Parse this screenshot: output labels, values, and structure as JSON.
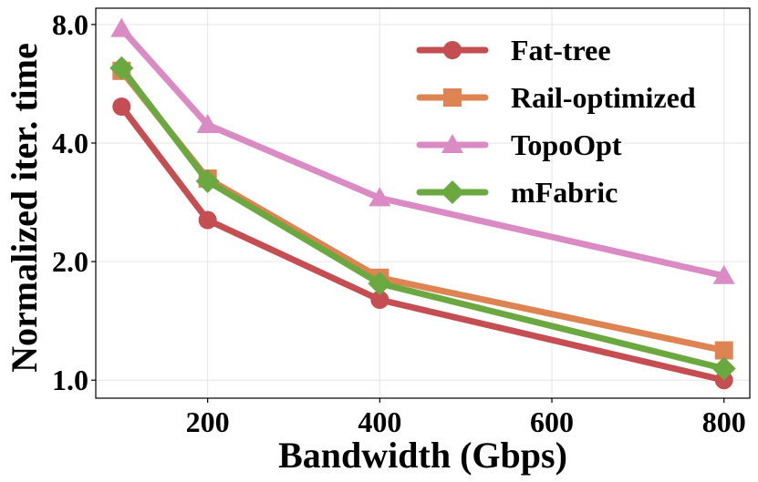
{
  "chart_data": {
    "type": "line",
    "title": "",
    "xlabel": "Bandwidth (Gbps)",
    "ylabel": "Normalized iter. time",
    "xlim": [
      70,
      830
    ],
    "ylim": [
      0.9,
      8.8
    ],
    "yscale": "log2",
    "grid": true,
    "legend_position": "top-right",
    "x_ticks": [
      200,
      400,
      600,
      800
    ],
    "x_tick_labels": [
      "200",
      "400",
      "600",
      "800"
    ],
    "y_ticks": [
      1.0,
      2.0,
      4.0,
      8.0
    ],
    "y_tick_labels": [
      "1.0",
      "2.0",
      "4.0",
      "8.0"
    ],
    "x": [
      100,
      200,
      400,
      800
    ],
    "series": [
      {
        "name": "Fat-tree",
        "color": "#c44e52",
        "marker": "circle",
        "values": [
          4.95,
          2.55,
          1.6,
          1.0
        ]
      },
      {
        "name": "Rail-optimized",
        "color": "#dd8452",
        "marker": "square",
        "values": [
          6.1,
          3.25,
          1.82,
          1.19
        ]
      },
      {
        "name": "TopoOpt",
        "color": "#da8bc3",
        "marker": "triangle",
        "values": [
          7.8,
          4.45,
          2.9,
          1.84
        ]
      },
      {
        "name": "mFabric",
        "color": "#6ca840",
        "marker": "diamond",
        "values": [
          6.2,
          3.2,
          1.76,
          1.07
        ]
      }
    ]
  }
}
